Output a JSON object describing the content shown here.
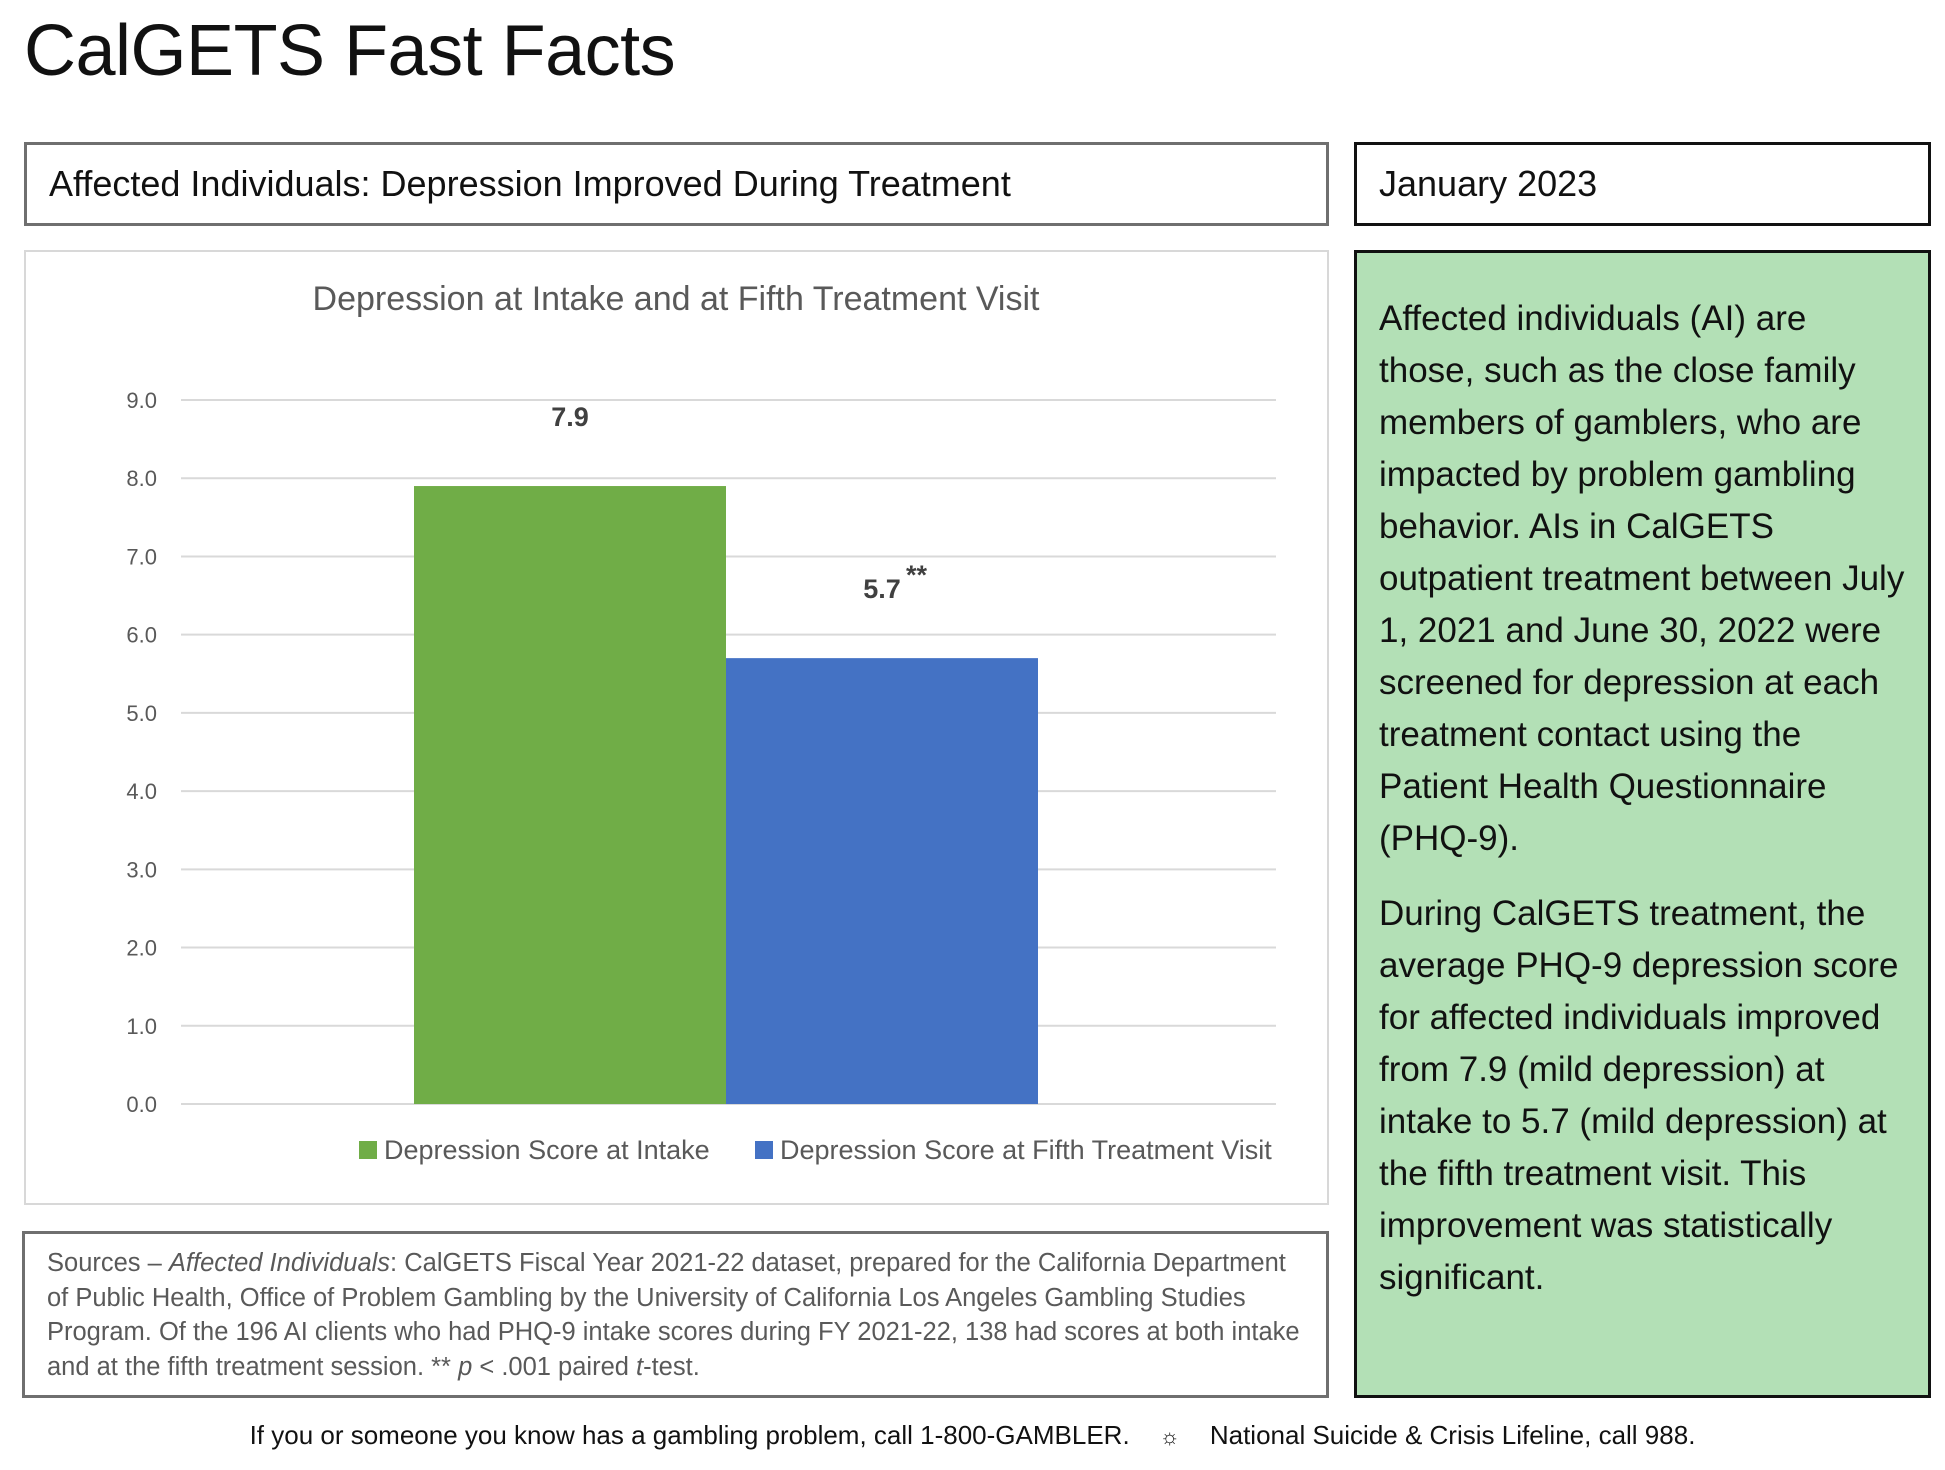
{
  "page": {
    "title": "CalGETS Fast Facts",
    "subtitle": "Affected Individuals: Depression Improved During Treatment",
    "date": "January 2023"
  },
  "info": {
    "paragraph1": "Affected individuals (AI) are those, such as the close family members of gamblers, who are impacted by problem gambling behavior. AIs in CalGETS outpatient treatment between July 1, 2021 and June 30, 2022 were screened for depression at each treatment contact using the Patient Health Questionnaire (PHQ-9).",
    "paragraph2": "During CalGETS treatment, the average PHQ-9 depression score for affected individuals improved from 7.9 (mild depression) at intake to 5.7 (mild depression) at the fifth treatment visit. This improvement was statistically significant."
  },
  "sources": {
    "prefix": "Sources – ",
    "italic_label": "Affected Individuals",
    "text1": ": CalGETS Fiscal Year 2021-22 dataset, prepared for the California Department of Public Health, Office of Problem Gambling by the University of California Los Angeles Gambling Studies Program.  Of the 196 AI clients who had PHQ-9 intake scores during FY 2021-22, 138 had scores at both intake and at the fifth treatment session.  ** ",
    "p_italic": "p",
    "text2": " < .001 paired ",
    "t_italic": "t",
    "text3": "-test."
  },
  "footer": {
    "left": "If you or someone you know has a gambling problem, call 1-800-GAMBLER.",
    "separator": "☼",
    "right": "National Suicide & Crisis Lifeline, call 988."
  },
  "chart_data": {
    "type": "bar",
    "title": "Depression at Intake and at Fifth Treatment Visit",
    "ylim": [
      0,
      9
    ],
    "yticks": [
      "0.0",
      "1.0",
      "2.0",
      "3.0",
      "4.0",
      "5.0",
      "6.0",
      "7.0",
      "8.0",
      "9.0"
    ],
    "grid": true,
    "legend_position": "bottom",
    "series": [
      {
        "name": "Depression Score at Intake",
        "values": [
          7.9
        ],
        "label": "7.9",
        "annotation": "",
        "color": "#70ad47"
      },
      {
        "name": "Depression Score at Fifth Treatment Visit",
        "values": [
          5.7
        ],
        "label": "5.7",
        "annotation": "**",
        "color": "#4472c4"
      }
    ]
  }
}
